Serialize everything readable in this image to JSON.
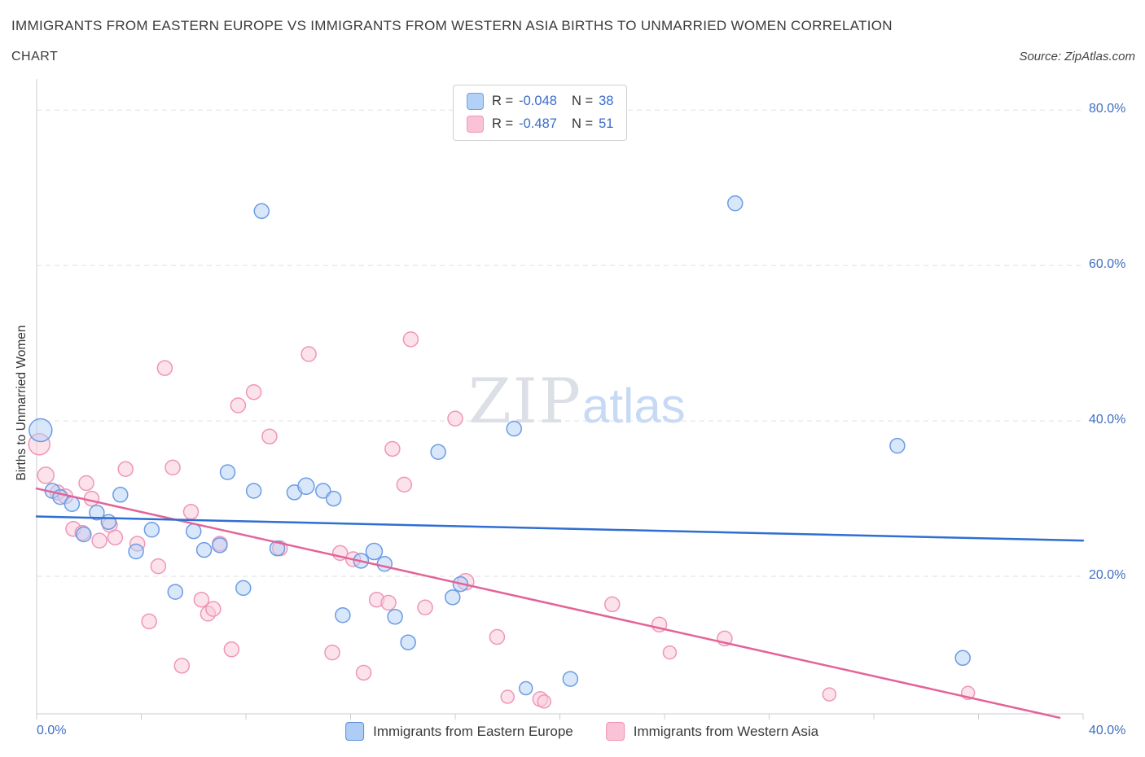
{
  "header": {
    "title": "IMMIGRANTS FROM EASTERN EUROPE VS IMMIGRANTS FROM WESTERN ASIA BIRTHS TO UNMARRIED WOMEN CORRELATION",
    "subtitle": "CHART",
    "source": "Source: ZipAtlas.com"
  },
  "correlation_box": {
    "rows": [
      {
        "r_label": "R =",
        "r_value": "-0.048",
        "n_label": "N =",
        "n_value": "38"
      },
      {
        "r_label": "R =",
        "r_value": "-0.487",
        "n_label": "N =",
        "n_value": "51"
      }
    ]
  },
  "watermark": {
    "part1": "ZIP",
    "part2": "atlas"
  },
  "axes": {
    "y_label": "Births to Unmarried Women",
    "y_tick_labels": [
      "80.0%",
      "60.0%",
      "40.0%",
      "20.0%"
    ],
    "x_tick_labels": [
      "0.0%",
      "40.0%"
    ]
  },
  "bottom_legend": [
    {
      "label": "Immigrants from Eastern Europe"
    },
    {
      "label": "Immigrants from Western Asia"
    }
  ],
  "chart_data": {
    "type": "scatter",
    "title": "Immigrants from Eastern Europe vs Immigrants from Western Asia Births to Unmarried Women Correlation",
    "xlabel": "",
    "ylabel": "Births to Unmarried Women",
    "xlim": [
      0,
      40
    ],
    "ylim": [
      0,
      84
    ],
    "grid_y_values": [
      20,
      40,
      60,
      80
    ],
    "grid": true,
    "legend_position": "bottom",
    "series": [
      {
        "id": "eastern-europe",
        "name": "Immigrants from Eastern Europe",
        "R": -0.048,
        "N": 38,
        "color_stroke": "#6b9ce4",
        "color_fill": "rgba(179,208,247,0.5)",
        "trend": {
          "x1": 0,
          "y1": 27.7,
          "x2": 40,
          "y2": 24.6,
          "color": "#2f6ed2"
        },
        "points": [
          [
            0.15,
            38.8,
            14
          ],
          [
            0.6,
            31.0,
            9
          ],
          [
            0.9,
            30.2,
            9
          ],
          [
            1.35,
            29.3,
            9
          ],
          [
            1.8,
            25.4,
            9
          ],
          [
            2.3,
            28.2,
            9
          ],
          [
            2.75,
            27.0,
            9
          ],
          [
            3.2,
            30.5,
            9
          ],
          [
            3.8,
            23.2,
            9
          ],
          [
            4.4,
            26.0,
            9
          ],
          [
            5.3,
            18.0,
            9
          ],
          [
            6.0,
            25.8,
            9
          ],
          [
            6.4,
            23.4,
            9
          ],
          [
            7.0,
            24.0,
            9
          ],
          [
            7.3,
            33.4,
            9
          ],
          [
            7.9,
            18.5,
            9
          ],
          [
            8.3,
            31.0,
            9
          ],
          [
            8.6,
            67.0,
            9
          ],
          [
            9.2,
            23.6,
            9
          ],
          [
            9.85,
            30.8,
            9
          ],
          [
            10.3,
            31.6,
            10
          ],
          [
            10.95,
            31.0,
            9
          ],
          [
            11.35,
            30.0,
            9
          ],
          [
            11.7,
            15.0,
            9
          ],
          [
            12.4,
            22.0,
            9
          ],
          [
            12.9,
            23.2,
            10
          ],
          [
            13.3,
            21.6,
            9
          ],
          [
            13.7,
            14.8,
            9
          ],
          [
            14.2,
            11.5,
            9
          ],
          [
            15.35,
            36.0,
            9
          ],
          [
            15.9,
            17.3,
            9
          ],
          [
            16.2,
            19.0,
            9
          ],
          [
            18.25,
            39.0,
            9
          ],
          [
            18.7,
            5.6,
            8
          ],
          [
            20.4,
            6.8,
            9
          ],
          [
            26.7,
            68.0,
            9
          ],
          [
            32.9,
            36.8,
            9
          ],
          [
            35.4,
            9.5,
            9
          ]
        ]
      },
      {
        "id": "western-asia",
        "name": "Immigrants from Western Asia",
        "R": -0.487,
        "N": 51,
        "color_stroke": "#ef96b8",
        "color_fill": "rgba(249,203,219,0.55)",
        "trend": {
          "x1": 0,
          "y1": 31.3,
          "x2": 39.1,
          "y2": 1.8,
          "color": "#e46397"
        },
        "points": [
          [
            0.1,
            37.0,
            13
          ],
          [
            0.35,
            33.0,
            10
          ],
          [
            0.8,
            30.8,
            9
          ],
          [
            1.1,
            30.3,
            9
          ],
          [
            1.4,
            26.1,
            9
          ],
          [
            1.75,
            25.6,
            9
          ],
          [
            1.9,
            32.0,
            9
          ],
          [
            2.1,
            30.0,
            9
          ],
          [
            2.4,
            24.6,
            9
          ],
          [
            2.8,
            26.6,
            9
          ],
          [
            3.0,
            25.0,
            9
          ],
          [
            3.4,
            33.8,
            9
          ],
          [
            3.85,
            24.2,
            9
          ],
          [
            4.3,
            14.2,
            9
          ],
          [
            4.65,
            21.3,
            9
          ],
          [
            4.9,
            46.8,
            9
          ],
          [
            5.2,
            34.0,
            9
          ],
          [
            5.55,
            8.5,
            9
          ],
          [
            5.9,
            28.3,
            9
          ],
          [
            6.3,
            17.0,
            9
          ],
          [
            6.55,
            15.2,
            9
          ],
          [
            6.75,
            15.8,
            9
          ],
          [
            7.0,
            24.2,
            9
          ],
          [
            7.45,
            10.6,
            9
          ],
          [
            7.7,
            42.0,
            9
          ],
          [
            8.3,
            43.7,
            9
          ],
          [
            8.9,
            38.0,
            9
          ],
          [
            9.3,
            23.6,
            9
          ],
          [
            10.4,
            48.6,
            9
          ],
          [
            11.3,
            10.2,
            9
          ],
          [
            11.6,
            23.0,
            9
          ],
          [
            12.1,
            22.2,
            9
          ],
          [
            12.5,
            7.6,
            9
          ],
          [
            13.0,
            17.0,
            9
          ],
          [
            13.45,
            16.6,
            9
          ],
          [
            13.6,
            36.4,
            9
          ],
          [
            14.05,
            31.8,
            9
          ],
          [
            14.3,
            50.5,
            9
          ],
          [
            14.85,
            16.0,
            9
          ],
          [
            16.0,
            40.3,
            9
          ],
          [
            16.4,
            19.3,
            10
          ],
          [
            17.6,
            12.2,
            9
          ],
          [
            18.0,
            4.5,
            8
          ],
          [
            19.25,
            4.2,
            9
          ],
          [
            19.4,
            3.9,
            8
          ],
          [
            22.0,
            16.4,
            9
          ],
          [
            23.8,
            13.8,
            9
          ],
          [
            24.2,
            10.2,
            8
          ],
          [
            26.3,
            12.0,
            9
          ],
          [
            30.3,
            4.8,
            8
          ],
          [
            35.6,
            5.0,
            8
          ]
        ]
      }
    ]
  }
}
